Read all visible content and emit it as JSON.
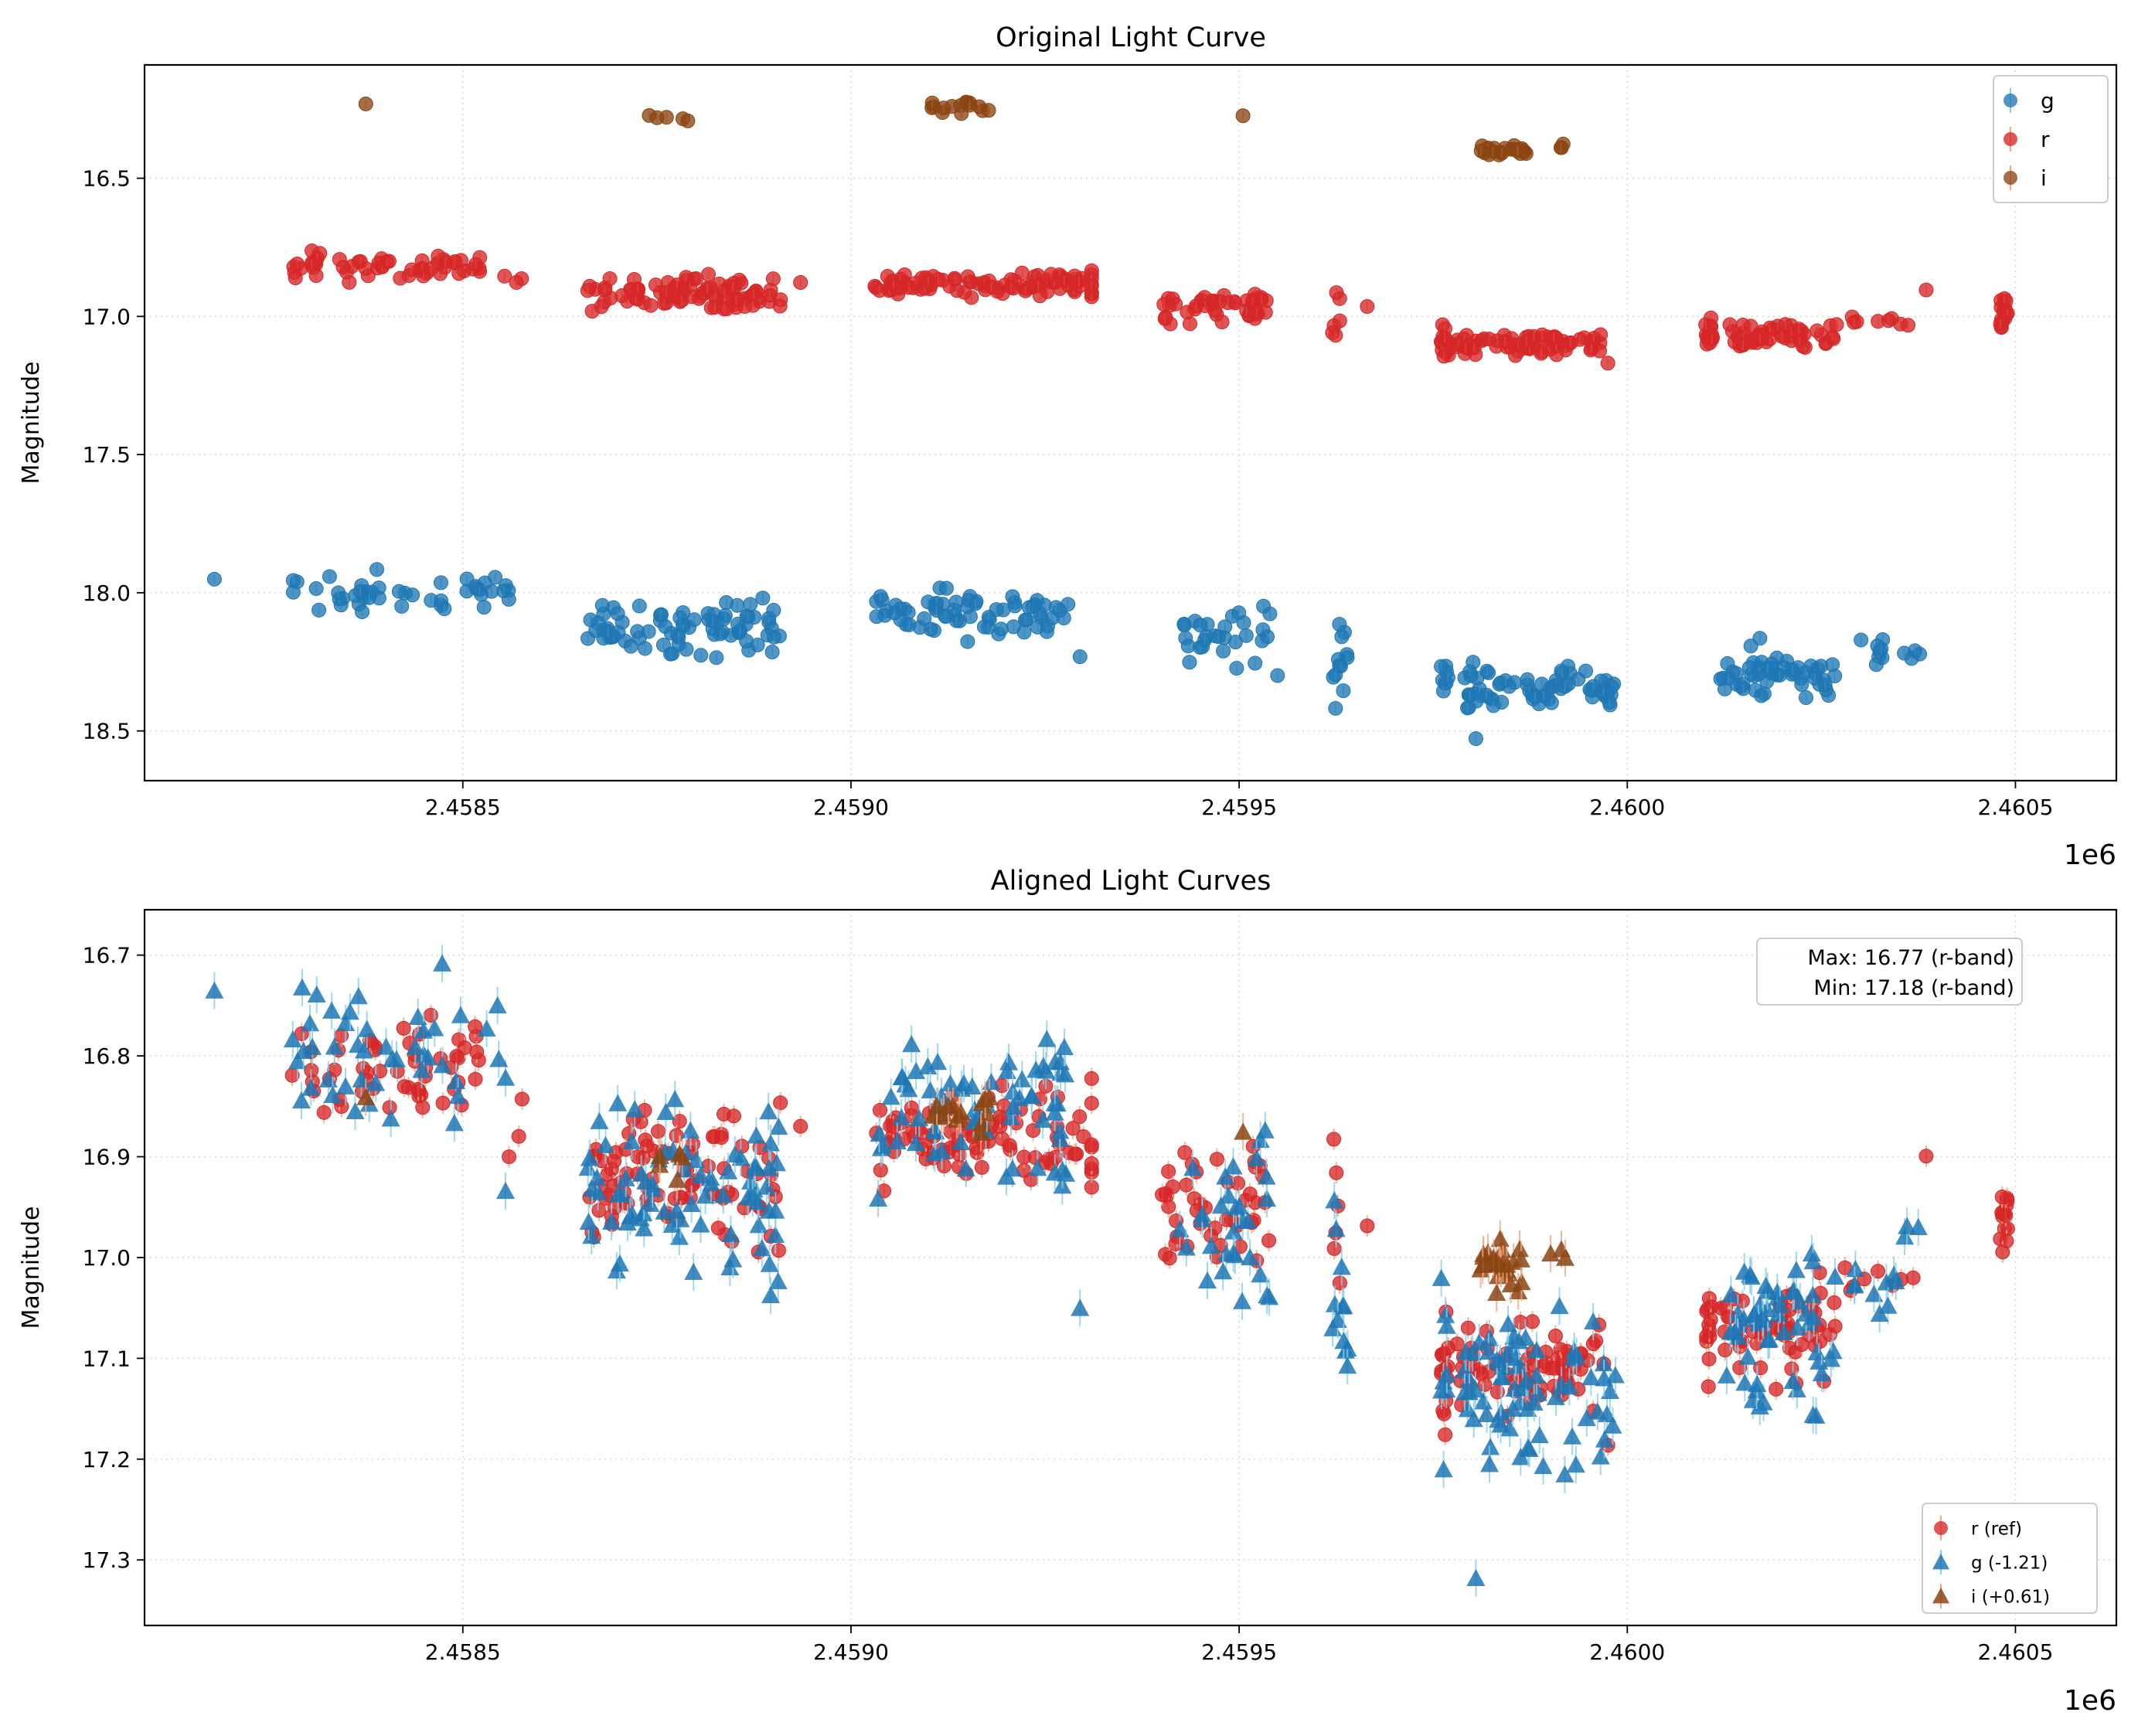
{
  "chart_data": [
    {
      "type": "scatter",
      "title": "Original Light Curve",
      "xlabel": "",
      "ylabel": "Magnitude",
      "x_offset_label": "1e6",
      "xlim": [
        2.45809,
        2.46063
      ],
      "ylim": [
        18.68,
        16.09
      ],
      "y_inverted": true,
      "xticks": [
        2.4585,
        2.459,
        2.4595,
        2.46,
        2.4605
      ],
      "xtick_labels": [
        "2.4585",
        "2.4590",
        "2.4595",
        "2.4600",
        "2.4605"
      ],
      "yticks": [
        16.5,
        17.0,
        17.5,
        18.0,
        18.5
      ],
      "ytick_labels": [
        "16.5",
        "17.0",
        "17.5",
        "18.0",
        "18.5"
      ],
      "grid": true,
      "legend_position": "top-right",
      "series": [
        {
          "name": "g",
          "marker": "circle",
          "color": "#1f77b4",
          "errcolor": "#87ceeb",
          "segments": [
            {
              "x": [
                2.45818,
                2.45818
              ],
              "mean": 17.95,
              "spread": 0.005,
              "n": 1,
              "trend": 0
            },
            {
              "x": [
                2.45828,
                2.45856
              ],
              "mean": 18.0,
              "spread": 0.04,
              "n": 45,
              "trend": 0.02
            },
            {
              "x": [
                2.45866,
                2.45891
              ],
              "mean": 18.13,
              "spread": 0.05,
              "n": 80,
              "trend": 0.04
            },
            {
              "x": [
                2.45903,
                2.45928
              ],
              "mean": 18.07,
              "spread": 0.04,
              "n": 70,
              "trend": 0.02
            },
            {
              "x": [
                2.45929,
                2.4593
              ],
              "mean": 18.26,
              "spread": 0.01,
              "n": 1,
              "trend": 0
            },
            {
              "x": [
                2.45942,
                2.45955
              ],
              "mean": 18.16,
              "spread": 0.05,
              "n": 30,
              "trend": 0.04
            },
            {
              "x": [
                2.45962,
                2.45964
              ],
              "mean": 18.25,
              "spread": 0.08,
              "n": 12,
              "trend": 0
            },
            {
              "x": [
                2.45976,
                2.45977
              ],
              "mean": 18.3,
              "spread": 0.05,
              "n": 8,
              "trend": 0
            },
            {
              "x": [
                2.45979,
                2.45999
              ],
              "mean": 18.35,
              "spread": 0.04,
              "n": 70,
              "trend": 0
            },
            {
              "x": [
                2.4598,
                2.45981
              ],
              "mean": 18.53,
              "spread": 0.005,
              "n": 1,
              "trend": 0
            },
            {
              "x": [
                2.46012,
                2.46027
              ],
              "mean": 18.29,
              "spread": 0.04,
              "n": 55,
              "trend": -0.05
            },
            {
              "x": [
                2.46029,
                2.46039
              ],
              "mean": 18.22,
              "spread": 0.03,
              "n": 12,
              "trend": 0
            }
          ]
        },
        {
          "name": "r",
          "marker": "circle",
          "color": "#d62728",
          "errcolor": "#f4a582",
          "segments": [
            {
              "x": [
                2.45828,
                2.45853
              ],
              "mean": 16.82,
              "spread": 0.02,
              "n": 55,
              "trend": 0.03
            },
            {
              "x": [
                2.45854,
                2.45858
              ],
              "mean": 16.87,
              "spread": 0.01,
              "n": 3,
              "trend": 0
            },
            {
              "x": [
                2.45866,
                2.45891
              ],
              "mean": 16.92,
              "spread": 0.03,
              "n": 90,
              "trend": 0
            },
            {
              "x": [
                2.45893,
                2.45894
              ],
              "mean": 16.87,
              "spread": 0.005,
              "n": 1,
              "trend": 0
            },
            {
              "x": [
                2.45903,
                2.4593
              ],
              "mean": 16.88,
              "spread": 0.02,
              "n": 90,
              "trend": 0
            },
            {
              "x": [
                2.45931,
                2.45931
              ],
              "mean": 16.89,
              "spread": 0.04,
              "n": 8,
              "trend": 0
            },
            {
              "x": [
                2.4594,
                2.45954
              ],
              "mean": 16.96,
              "spread": 0.03,
              "n": 45,
              "trend": 0
            },
            {
              "x": [
                2.45962,
                2.45963
              ],
              "mean": 16.97,
              "spread": 0.05,
              "n": 6,
              "trend": 0
            },
            {
              "x": [
                2.45966,
                2.45967
              ],
              "mean": 16.96,
              "spread": 0.005,
              "n": 1,
              "trend": 0
            },
            {
              "x": [
                2.45976,
                2.45977
              ],
              "mean": 17.08,
              "spread": 0.04,
              "n": 14,
              "trend": 0
            },
            {
              "x": [
                2.45978,
                2.45997
              ],
              "mean": 17.1,
              "spread": 0.02,
              "n": 70,
              "trend": 0
            },
            {
              "x": [
                2.45997,
                2.45998
              ],
              "mean": 17.18,
              "spread": 0.005,
              "n": 1,
              "trend": 0
            },
            {
              "x": [
                2.4601,
                2.46011
              ],
              "mean": 17.07,
              "spread": 0.03,
              "n": 12,
              "trend": 0
            },
            {
              "x": [
                2.46012,
                2.46027
              ],
              "mean": 17.07,
              "spread": 0.02,
              "n": 55,
              "trend": -0.04
            },
            {
              "x": [
                2.46028,
                2.46037
              ],
              "mean": 17.02,
              "spread": 0.01,
              "n": 8,
              "trend": 0
            },
            {
              "x": [
                2.46038,
                2.46039
              ],
              "mean": 16.9,
              "spread": 0.005,
              "n": 1,
              "trend": 0
            },
            {
              "x": [
                2.46048,
                2.46049
              ],
              "mean": 16.98,
              "spread": 0.03,
              "n": 14,
              "trend": 0
            }
          ]
        },
        {
          "name": "i",
          "marker": "circle",
          "color": "#8b4513",
          "errcolor": "#f4a582",
          "segments": [
            {
              "x": [
                2.45837,
                2.45838
              ],
              "mean": 16.23,
              "spread": 0.003,
              "n": 1,
              "trend": 0
            },
            {
              "x": [
                2.45874,
                2.45879
              ],
              "mean": 16.29,
              "spread": 0.01,
              "n": 5,
              "trend": 0
            },
            {
              "x": [
                2.4591,
                2.45918
              ],
              "mean": 16.24,
              "spread": 0.01,
              "n": 15,
              "trend": 0
            },
            {
              "x": [
                2.4595,
                2.45951
              ],
              "mean": 16.27,
              "spread": 0.003,
              "n": 1,
              "trend": 0
            },
            {
              "x": [
                2.45981,
                2.45987
              ],
              "mean": 16.4,
              "spread": 0.01,
              "n": 25,
              "trend": 0
            },
            {
              "x": [
                2.4599,
                2.45992
              ],
              "mean": 16.38,
              "spread": 0.01,
              "n": 3,
              "trend": 0
            }
          ]
        }
      ]
    },
    {
      "type": "scatter",
      "title": "Aligned Light Curves",
      "xlabel": "",
      "ylabel": "Magnitude",
      "x_offset_label": "1e6",
      "xlim": [
        2.45809,
        2.46063
      ],
      "ylim": [
        17.365,
        16.655
      ],
      "y_inverted": true,
      "xticks": [
        2.4585,
        2.459,
        2.4595,
        2.46,
        2.4605
      ],
      "xtick_labels": [
        "2.4585",
        "2.4590",
        "2.4595",
        "2.4600",
        "2.4605"
      ],
      "yticks": [
        16.7,
        16.8,
        16.9,
        17.0,
        17.1,
        17.2,
        17.3
      ],
      "ytick_labels": [
        "16.7",
        "16.8",
        "16.9",
        "17.0",
        "17.1",
        "17.2",
        "17.3"
      ],
      "grid": true,
      "legend_position": "bottom-right",
      "annotation": {
        "line1": "Max: 16.77 (r-band)",
        "line2": "Min: 17.18 (r-band)",
        "position": "top-right"
      },
      "series": [
        {
          "name": "r (ref)",
          "marker": "circle",
          "color": "#d62728",
          "errcolor": "#f4a582",
          "segments": [
            {
              "x": [
                2.45828,
                2.45853
              ],
              "mean": 16.82,
              "spread": 0.025,
              "n": 55,
              "trend": 0.03
            },
            {
              "x": [
                2.45854,
                2.45858
              ],
              "mean": 16.87,
              "spread": 0.015,
              "n": 3,
              "trend": 0
            },
            {
              "x": [
                2.45866,
                2.45891
              ],
              "mean": 16.92,
              "spread": 0.03,
              "n": 90,
              "trend": 0
            },
            {
              "x": [
                2.45893,
                2.45894
              ],
              "mean": 16.87,
              "spread": 0.005,
              "n": 1,
              "trend": 0
            },
            {
              "x": [
                2.45903,
                2.4593
              ],
              "mean": 16.88,
              "spread": 0.02,
              "n": 90,
              "trend": 0
            },
            {
              "x": [
                2.45931,
                2.45931
              ],
              "mean": 16.89,
              "spread": 0.04,
              "n": 8,
              "trend": 0
            },
            {
              "x": [
                2.4594,
                2.45954
              ],
              "mean": 16.95,
              "spread": 0.03,
              "n": 45,
              "trend": 0
            },
            {
              "x": [
                2.45962,
                2.45963
              ],
              "mean": 16.97,
              "spread": 0.05,
              "n": 6,
              "trend": 0
            },
            {
              "x": [
                2.45966,
                2.45967
              ],
              "mean": 16.97,
              "spread": 0.005,
              "n": 1,
              "trend": 0
            },
            {
              "x": [
                2.45976,
                2.45977
              ],
              "mean": 17.1,
              "spread": 0.04,
              "n": 14,
              "trend": 0
            },
            {
              "x": [
                2.45978,
                2.45997
              ],
              "mean": 17.11,
              "spread": 0.02,
              "n": 70,
              "trend": 0
            },
            {
              "x": [
                2.45997,
                2.45998
              ],
              "mean": 17.18,
              "spread": 0.005,
              "n": 1,
              "trend": 0
            },
            {
              "x": [
                2.4601,
                2.46011
              ],
              "mean": 17.08,
              "spread": 0.03,
              "n": 12,
              "trend": 0
            },
            {
              "x": [
                2.46012,
                2.46027
              ],
              "mean": 17.07,
              "spread": 0.02,
              "n": 55,
              "trend": -0.04
            },
            {
              "x": [
                2.46028,
                2.46037
              ],
              "mean": 17.02,
              "spread": 0.01,
              "n": 8,
              "trend": 0
            },
            {
              "x": [
                2.46038,
                2.46039
              ],
              "mean": 16.9,
              "spread": 0.005,
              "n": 1,
              "trend": 0
            },
            {
              "x": [
                2.46048,
                2.46049
              ],
              "mean": 16.98,
              "spread": 0.03,
              "n": 14,
              "trend": 0
            }
          ]
        },
        {
          "name": "g (-1.21)",
          "marker": "triangle",
          "color": "#1f77b4",
          "errcolor": "#87ceeb",
          "segments": [
            {
              "x": [
                2.45818,
                2.45818
              ],
              "mean": 16.74,
              "spread": 0.005,
              "n": 1,
              "trend": 0
            },
            {
              "x": [
                2.45828,
                2.45856
              ],
              "mean": 16.8,
              "spread": 0.04,
              "n": 45,
              "trend": 0.03
            },
            {
              "x": [
                2.45855,
                2.45856
              ],
              "mean": 16.93,
              "spread": 0.005,
              "n": 1,
              "trend": 0
            },
            {
              "x": [
                2.45866,
                2.45891
              ],
              "mean": 16.93,
              "spread": 0.04,
              "n": 80,
              "trend": 0.03
            },
            {
              "x": [
                2.45903,
                2.45928
              ],
              "mean": 16.86,
              "spread": 0.035,
              "n": 70,
              "trend": 0.02
            },
            {
              "x": [
                2.45929,
                2.4593
              ],
              "mean": 17.05,
              "spread": 0.005,
              "n": 1,
              "trend": 0
            },
            {
              "x": [
                2.45942,
                2.45955
              ],
              "mean": 16.96,
              "spread": 0.05,
              "n": 30,
              "trend": 0.04
            },
            {
              "x": [
                2.45962,
                2.45964
              ],
              "mean": 17.04,
              "spread": 0.07,
              "n": 12,
              "trend": 0
            },
            {
              "x": [
                2.45976,
                2.45977
              ],
              "mean": 17.1,
              "spread": 0.05,
              "n": 8,
              "trend": 0
            },
            {
              "x": [
                2.45979,
                2.45999
              ],
              "mean": 17.14,
              "spread": 0.035,
              "n": 70,
              "trend": 0
            },
            {
              "x": [
                2.4598,
                2.45981
              ],
              "mean": 17.32,
              "spread": 0.003,
              "n": 1,
              "trend": 0
            },
            {
              "x": [
                2.46012,
                2.46027
              ],
              "mean": 17.08,
              "spread": 0.04,
              "n": 55,
              "trend": -0.05
            },
            {
              "x": [
                2.46029,
                2.46039
              ],
              "mean": 17.01,
              "spread": 0.03,
              "n": 12,
              "trend": 0
            }
          ]
        },
        {
          "name": "i (+0.61)",
          "marker": "triangle",
          "color": "#8b4513",
          "errcolor": "#f4a582",
          "segments": [
            {
              "x": [
                2.45837,
                2.45838
              ],
              "mean": 16.84,
              "spread": 0.003,
              "n": 1,
              "trend": 0
            },
            {
              "x": [
                2.45874,
                2.45879
              ],
              "mean": 16.9,
              "spread": 0.01,
              "n": 5,
              "trend": 0
            },
            {
              "x": [
                2.4591,
                2.45918
              ],
              "mean": 16.86,
              "spread": 0.01,
              "n": 15,
              "trend": 0
            },
            {
              "x": [
                2.4595,
                2.45951
              ],
              "mean": 16.88,
              "spread": 0.003,
              "n": 1,
              "trend": 0
            },
            {
              "x": [
                2.45981,
                2.45987
              ],
              "mean": 17.01,
              "spread": 0.015,
              "n": 25,
              "trend": 0
            },
            {
              "x": [
                2.4599,
                2.45992
              ],
              "mean": 16.99,
              "spread": 0.01,
              "n": 3,
              "trend": 0
            }
          ]
        }
      ]
    }
  ]
}
